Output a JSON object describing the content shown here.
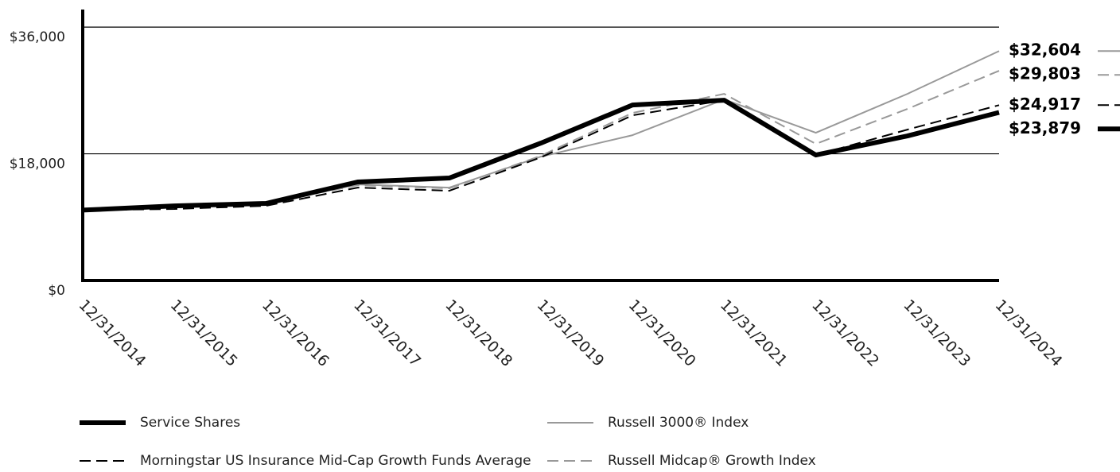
{
  "chart_data": {
    "type": "line",
    "categories": [
      "12/31/2014",
      "12/31/2015",
      "12/31/2016",
      "12/31/2017",
      "12/31/2018",
      "12/31/2019",
      "12/31/2020",
      "12/31/2021",
      "12/31/2022",
      "12/31/2023",
      "12/31/2024"
    ],
    "series": [
      {
        "name": "Service Shares",
        "color": "#000000",
        "values": [
          10000,
          10600,
          10950,
          14000,
          14560,
          19520,
          24940,
          25620,
          17830,
          20540,
          23879
        ],
        "value_labels": [
          null,
          null,
          null,
          null,
          null,
          null,
          null,
          null,
          null,
          null,
          "$23,879"
        ]
      },
      {
        "name": "Russell 3000® Index",
        "color": "#999999",
        "values": [
          10000,
          10400,
          11000,
          13650,
          13200,
          17600,
          20650,
          25730,
          20990,
          26520,
          32604
        ],
        "value_labels": [
          null,
          null,
          null,
          null,
          null,
          null,
          null,
          null,
          null,
          null,
          "$32,604"
        ]
      },
      {
        "name": "Morningstar US Insurance Mid-Cap Growth Funds Average",
        "color": "#000000",
        "values": [
          10000,
          10160,
          10610,
          13200,
          12750,
          17490,
          23470,
          25620,
          17830,
          21440,
          24917
        ],
        "value_labels": [
          null,
          null,
          null,
          null,
          null,
          null,
          null,
          null,
          null,
          null,
          "$24,917"
        ]
      },
      {
        "name": "Russell Midcap® Growth Index",
        "color": "#999999",
        "values": [
          10000,
          10400,
          11000,
          13540,
          13090,
          17720,
          23810,
          26520,
          19410,
          24380,
          29803
        ],
        "value_labels": [
          null,
          null,
          null,
          null,
          null,
          null,
          null,
          null,
          null,
          null,
          "$29,803"
        ]
      }
    ],
    "ylim": [
      0,
      38500
    ],
    "yticks": [
      {
        "value": 0,
        "label": "$0"
      },
      {
        "value": 18000,
        "label": "$18,000"
      },
      {
        "value": 36000,
        "label": "$36,000"
      }
    ],
    "grid": true
  }
}
